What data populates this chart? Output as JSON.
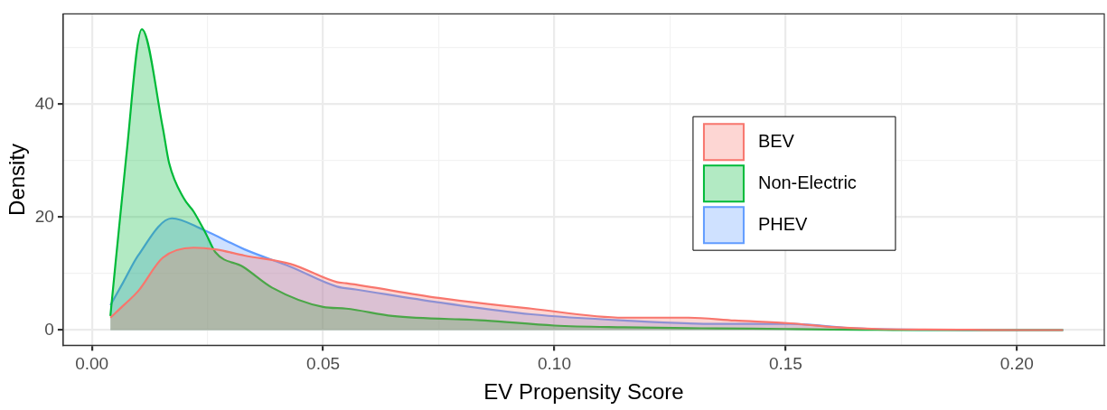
{
  "chart_data": {
    "type": "area",
    "xlabel": "EV Propensity Score",
    "ylabel": "Density",
    "xlim": [
      -0.0062,
      0.2189
    ],
    "ylim": [
      -2.7,
      56
    ],
    "xticks": [
      {
        "value": 0,
        "label": "0.00"
      },
      {
        "value": 0.025,
        "label": null
      },
      {
        "value": 0.05,
        "label": "0.05"
      },
      {
        "value": 0.075,
        "label": null
      },
      {
        "value": 0.1,
        "label": "0.10"
      },
      {
        "value": 0.125,
        "label": null
      },
      {
        "value": 0.15,
        "label": "0.15"
      },
      {
        "value": 0.175,
        "label": null
      },
      {
        "value": 0.2,
        "label": "0.20"
      }
    ],
    "yticks": [
      0,
      {
        "value": 10,
        "label": null
      },
      20,
      {
        "value": 30,
        "label": null
      },
      40,
      {
        "value": 50,
        "label": null
      }
    ],
    "grid": true,
    "legend": "right",
    "marker": "none",
    "line_style": "solid",
    "series": [
      {
        "name": "BEV",
        "color": "#f8766d",
        "x": [
          0.004,
          0.007,
          0.01,
          0.0153,
          0.022,
          0.0267,
          0.033,
          0.043,
          0.053,
          0.055,
          0.075,
          0.095,
          0.115,
          0.129,
          0.139,
          0.151,
          0.161,
          0.17,
          0.18,
          0.19,
          0.2,
          0.21
        ],
        "values": [
          2.2,
          4.5,
          6.9,
          12.8,
          14.6,
          14.3,
          13.2,
          11.7,
          8.5,
          8.3,
          5.7,
          3.8,
          2.2,
          2.2,
          1.7,
          1.2,
          0.5,
          0.2,
          0.1,
          0.05,
          0,
          0
        ]
      },
      {
        "name": "Non-Electric",
        "color": "#00ba38",
        "x": [
          0.004,
          0.0074,
          0.0108,
          0.0153,
          0.0167,
          0.0199,
          0.022,
          0.0247,
          0.0267,
          0.0327,
          0.039,
          0.05,
          0.055,
          0.065,
          0.085,
          0.1,
          0.115,
          0.135,
          0.15,
          0.16,
          0.17,
          0.18,
          0.19,
          0.2,
          0.21
        ],
        "values": [
          2.5,
          30.5,
          53.3,
          36,
          29.6,
          23.3,
          21,
          17,
          13.8,
          11.2,
          7.5,
          4.1,
          3.8,
          2.5,
          1.7,
          0.8,
          0.5,
          0.3,
          0.2,
          0.1,
          0.05,
          0,
          0,
          0,
          0
        ]
      },
      {
        "name": "PHEV",
        "color": "#619cff",
        "x": [
          0.004,
          0.0068,
          0.01,
          0.0173,
          0.024,
          0.033,
          0.043,
          0.053,
          0.057,
          0.075,
          0.095,
          0.115,
          0.135,
          0.151,
          0.165,
          0.175,
          0.185,
          0.195,
          0.21
        ],
        "values": [
          4.4,
          8.5,
          13.2,
          19.8,
          17.8,
          14.3,
          11.2,
          7.7,
          7.2,
          4.9,
          2.8,
          1.7,
          1.1,
          1.1,
          0.3,
          0.1,
          0.05,
          0,
          0
        ]
      }
    ]
  }
}
